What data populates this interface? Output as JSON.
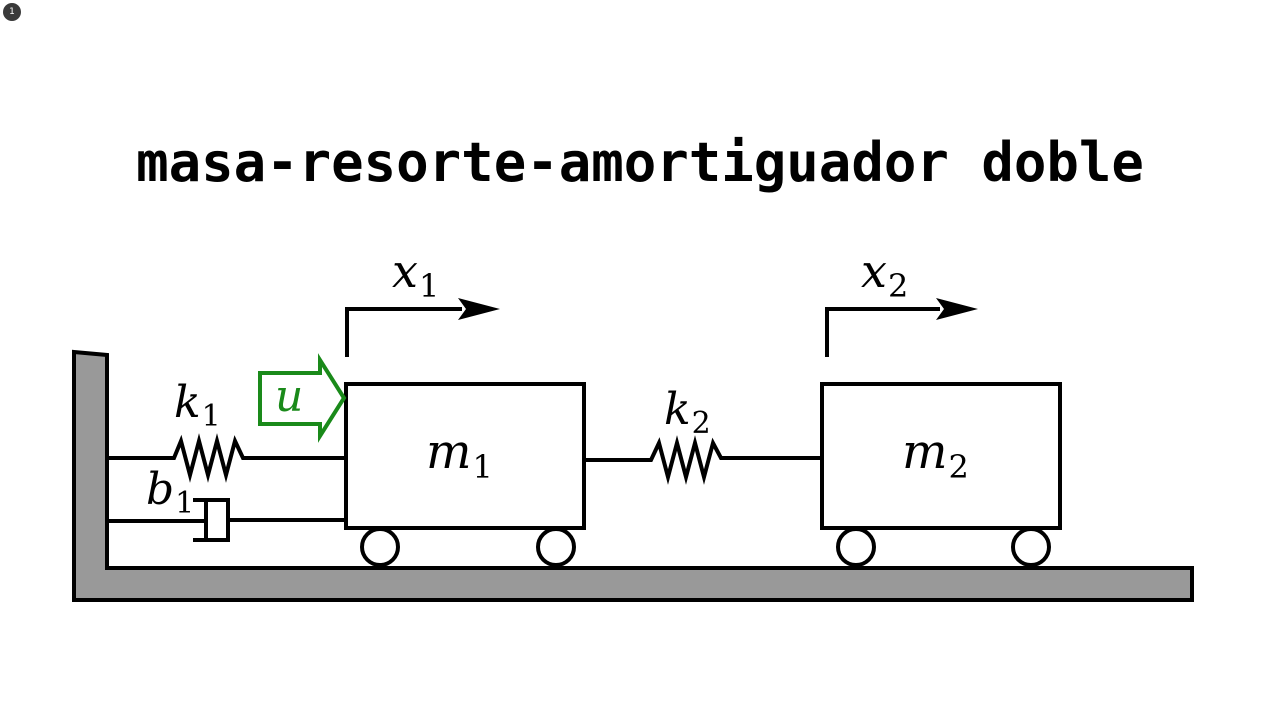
{
  "page_badge": "1",
  "title": "masa-resorte-amortiguador doble",
  "labels": {
    "x1": {
      "base": "x",
      "sub": "1"
    },
    "x2": {
      "base": "x",
      "sub": "2"
    },
    "k1": {
      "base": "k",
      "sub": "1"
    },
    "b1": {
      "base": "b",
      "sub": "1"
    },
    "k2": {
      "base": "k",
      "sub": "2"
    },
    "m1": {
      "base": "m",
      "sub": "1"
    },
    "m2": {
      "base": "m",
      "sub": "2"
    },
    "u": "u"
  },
  "colors": {
    "ground": "#999999",
    "stroke": "#000000",
    "input_arrow": "#1a8a1a"
  }
}
